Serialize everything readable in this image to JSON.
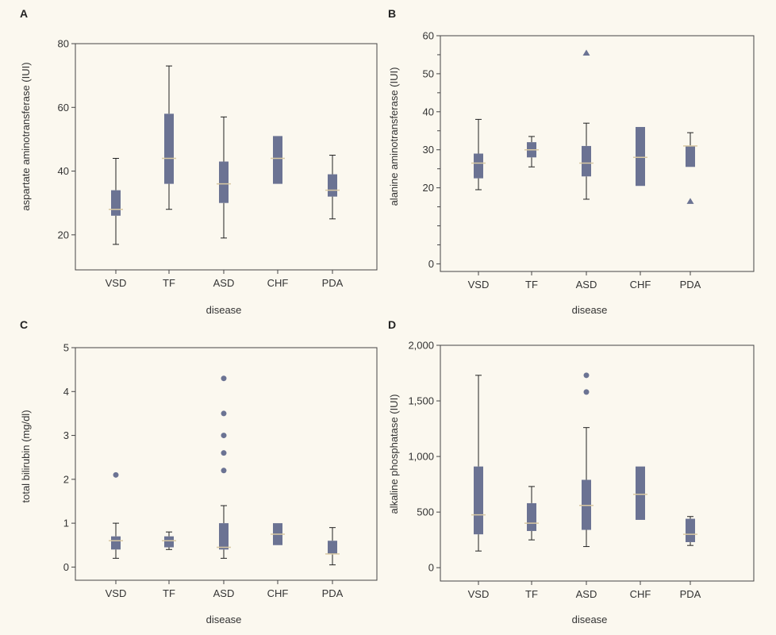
{
  "chart_data": [
    {
      "panel_label": "A",
      "type": "box",
      "xlabel": "disease",
      "ylabel": "aspartate aminotransferase (IUI)",
      "categories": [
        "VSD",
        "TF",
        "ASD",
        "CHF",
        "PDA"
      ],
      "ylim": [
        9,
        80
      ],
      "yticks": [
        {
          "v": 20,
          "label": "20"
        },
        {
          "v": 40,
          "label": "40"
        },
        {
          "v": 60,
          "label": "60"
        },
        {
          "v": 80,
          "label": "80"
        }
      ],
      "minor_ticks": [],
      "boxes": [
        {
          "category": "VSD",
          "whisker_low": 17,
          "q1": 26,
          "median": 28,
          "q3": 34,
          "whisker_high": 44
        },
        {
          "category": "TF",
          "whisker_low": 28,
          "q1": 36,
          "median": 44,
          "q3": 58,
          "whisker_high": 73
        },
        {
          "category": "ASD",
          "whisker_low": 19,
          "q1": 30,
          "median": 36,
          "q3": 43,
          "whisker_high": 57
        },
        {
          "category": "CHF",
          "whisker_low": null,
          "q1": 36,
          "median": 44,
          "q3": 51,
          "whisker_high": null
        },
        {
          "category": "PDA",
          "whisker_low": 25,
          "q1": 32,
          "median": 34,
          "q3": 39,
          "whisker_high": 45
        }
      ],
      "outliers": []
    },
    {
      "panel_label": "B",
      "type": "box",
      "xlabel": "disease",
      "ylabel": "alanine aminotransferase (IUI)",
      "categories": [
        "VSD",
        "TF",
        "ASD",
        "CHF",
        "PDA"
      ],
      "ylim": [
        -2,
        60
      ],
      "yticks": [
        {
          "v": 0,
          "label": "0"
        },
        {
          "v": 20,
          "label": "20"
        },
        {
          "v": 30,
          "label": "30"
        },
        {
          "v": 40,
          "label": "40"
        },
        {
          "v": 50,
          "label": "50"
        },
        {
          "v": 60,
          "label": "60"
        }
      ],
      "minor_ticks": [
        55,
        45,
        35,
        25,
        15,
        10,
        5
      ],
      "boxes": [
        {
          "category": "VSD",
          "whisker_low": 19.5,
          "q1": 22.5,
          "median": 26.5,
          "q3": 29,
          "whisker_high": 38
        },
        {
          "category": "TF",
          "whisker_low": 25.5,
          "q1": 28,
          "median": 30,
          "q3": 32,
          "whisker_high": 33.5
        },
        {
          "category": "ASD",
          "whisker_low": 17,
          "q1": 23,
          "median": 26.5,
          "q3": 31,
          "whisker_high": 37
        },
        {
          "category": "CHF",
          "whisker_low": null,
          "q1": 20.5,
          "median": 28,
          "q3": 36,
          "whisker_high": null
        },
        {
          "category": "PDA",
          "whisker_low": null,
          "q1": 25.5,
          "median": 31,
          "q3": 31,
          "whisker_high": 34.5
        }
      ],
      "outliers": [
        {
          "category": "ASD",
          "value": 55.5,
          "marker": "triangle"
        },
        {
          "category": "PDA",
          "value": 16.5,
          "marker": "triangle"
        }
      ]
    },
    {
      "panel_label": "C",
      "type": "box",
      "xlabel": "disease",
      "ylabel": "total bilirubin (mg/dl)",
      "categories": [
        "VSD",
        "TF",
        "ASD",
        "CHF",
        "PDA"
      ],
      "ylim": [
        -0.3,
        5
      ],
      "yticks": [
        {
          "v": 0,
          "label": "0"
        },
        {
          "v": 1,
          "label": "1"
        },
        {
          "v": 2,
          "label": "2"
        },
        {
          "v": 3,
          "label": "3"
        },
        {
          "v": 4,
          "label": "4"
        },
        {
          "v": 5,
          "label": "5"
        }
      ],
      "minor_ticks": [],
      "boxes": [
        {
          "category": "VSD",
          "whisker_low": 0.2,
          "q1": 0.4,
          "median": 0.6,
          "q3": 0.7,
          "whisker_high": 1.0
        },
        {
          "category": "TF",
          "whisker_low": 0.4,
          "q1": 0.45,
          "median": 0.6,
          "q3": 0.7,
          "whisker_high": 0.8
        },
        {
          "category": "ASD",
          "whisker_low": 0.2,
          "q1": 0.4,
          "median": 0.45,
          "q3": 1.0,
          "whisker_high": 1.4
        },
        {
          "category": "CHF",
          "whisker_low": null,
          "q1": 0.5,
          "median": 0.75,
          "q3": 1.0,
          "whisker_high": null
        },
        {
          "category": "PDA",
          "whisker_low": 0.05,
          "q1": 0.3,
          "median": 0.3,
          "q3": 0.6,
          "whisker_high": 0.9
        }
      ],
      "outliers": [
        {
          "category": "VSD",
          "value": 2.1,
          "marker": "circle"
        },
        {
          "category": "ASD",
          "value": 2.2,
          "marker": "circle"
        },
        {
          "category": "ASD",
          "value": 2.6,
          "marker": "circle"
        },
        {
          "category": "ASD",
          "value": 3.0,
          "marker": "circle"
        },
        {
          "category": "ASD",
          "value": 3.5,
          "marker": "circle"
        },
        {
          "category": "ASD",
          "value": 4.3,
          "marker": "circle"
        }
      ]
    },
    {
      "panel_label": "D",
      "type": "box",
      "xlabel": "disease",
      "ylabel": "alkaline phosphatase (IUI)",
      "categories": [
        "VSD",
        "TF",
        "ASD",
        "CHF",
        "PDA"
      ],
      "ylim": [
        -120,
        2000
      ],
      "yticks": [
        {
          "v": 0,
          "label": "0"
        },
        {
          "v": 500,
          "label": "500"
        },
        {
          "v": 1000,
          "label": "1,000"
        },
        {
          "v": 1500,
          "label": "1,500"
        },
        {
          "v": 2000,
          "label": "2,000"
        }
      ],
      "minor_ticks": [],
      "boxes": [
        {
          "category": "VSD",
          "whisker_low": 150,
          "q1": 300,
          "median": 475,
          "q3": 910,
          "whisker_high": 1730
        },
        {
          "category": "TF",
          "whisker_low": 250,
          "q1": 330,
          "median": 400,
          "q3": 580,
          "whisker_high": 730
        },
        {
          "category": "ASD",
          "whisker_low": 190,
          "q1": 340,
          "median": 560,
          "q3": 790,
          "whisker_high": 1260
        },
        {
          "category": "CHF",
          "whisker_low": null,
          "q1": 430,
          "median": 660,
          "q3": 910,
          "whisker_high": null
        },
        {
          "category": "PDA",
          "whisker_low": 200,
          "q1": 230,
          "median": 300,
          "q3": 440,
          "whisker_high": 460
        }
      ],
      "outliers": [
        {
          "category": "ASD",
          "value": 1580,
          "marker": "circle"
        },
        {
          "category": "ASD",
          "value": 1730,
          "marker": "circle"
        }
      ]
    }
  ],
  "colors": {
    "box": "#6b7393",
    "median": "#d9c9a3",
    "whisker": "#222222",
    "frame": "#444444",
    "background": "#fbf8ef"
  }
}
